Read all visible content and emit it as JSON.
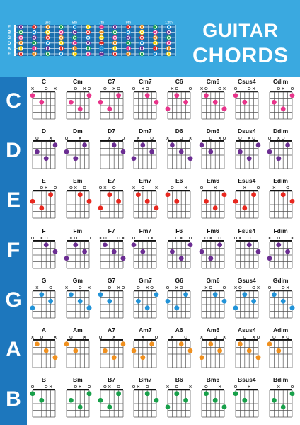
{
  "title": {
    "line1": "GUITAR",
    "line2": "CHORDS"
  },
  "fretboard": {
    "markers": [
      "3rd",
      "5th",
      "7th",
      "9th",
      "12th"
    ],
    "open_strings": [
      "E",
      "B",
      "G",
      "D",
      "A",
      "E"
    ]
  },
  "colors": {
    "header": "#3aa9e0",
    "sidebar": "#1d77bd",
    "C": "#e8338a",
    "D": "#6b2d92",
    "E": "#e8281f",
    "F": "#6b2d92",
    "G": "#2193d8",
    "A": "#f0901e",
    "B": "#18a04a"
  },
  "rows": [
    {
      "root": "C",
      "chords": [
        {
          "name": "C"
        },
        {
          "name": "Cm"
        },
        {
          "name": "C7"
        },
        {
          "name": "Cm7"
        },
        {
          "name": "C6"
        },
        {
          "name": "Cm6"
        },
        {
          "name": "Csus4"
        },
        {
          "name": "Cdim"
        }
      ]
    },
    {
      "root": "D",
      "chords": [
        {
          "name": "D"
        },
        {
          "name": "Dm"
        },
        {
          "name": "D7"
        },
        {
          "name": "Dm7"
        },
        {
          "name": "D6"
        },
        {
          "name": "Dm6"
        },
        {
          "name": "Dsus4"
        },
        {
          "name": "Ddim"
        }
      ]
    },
    {
      "root": "E",
      "chords": [
        {
          "name": "E"
        },
        {
          "name": "Em"
        },
        {
          "name": "E7"
        },
        {
          "name": "Em7"
        },
        {
          "name": "E6"
        },
        {
          "name": "Em6"
        },
        {
          "name": "Esus4"
        },
        {
          "name": "Edim"
        }
      ]
    },
    {
      "root": "F",
      "chords": [
        {
          "name": "F"
        },
        {
          "name": "Fm"
        },
        {
          "name": "F7"
        },
        {
          "name": "Fm7"
        },
        {
          "name": "F6"
        },
        {
          "name": "Fm6"
        },
        {
          "name": "Fsus4"
        },
        {
          "name": "Fdim"
        }
      ]
    },
    {
      "root": "G",
      "chords": [
        {
          "name": "G"
        },
        {
          "name": "Gm"
        },
        {
          "name": "G7"
        },
        {
          "name": "Gm7"
        },
        {
          "name": "G6"
        },
        {
          "name": "Gm6"
        },
        {
          "name": "Gsus4"
        },
        {
          "name": "Gdim"
        }
      ]
    },
    {
      "root": "A",
      "chords": [
        {
          "name": "A"
        },
        {
          "name": "Am"
        },
        {
          "name": "A7"
        },
        {
          "name": "Am7"
        },
        {
          "name": "A6"
        },
        {
          "name": "Am6"
        },
        {
          "name": "Asus4"
        },
        {
          "name": "Adim"
        }
      ]
    },
    {
      "root": "B",
      "chords": [
        {
          "name": "B"
        },
        {
          "name": "Bm"
        },
        {
          "name": "B7"
        },
        {
          "name": "Bm7"
        },
        {
          "name": "B6"
        },
        {
          "name": "Bm6"
        },
        {
          "name": "Bsus4"
        },
        {
          "name": "Bdim"
        }
      ]
    }
  ]
}
